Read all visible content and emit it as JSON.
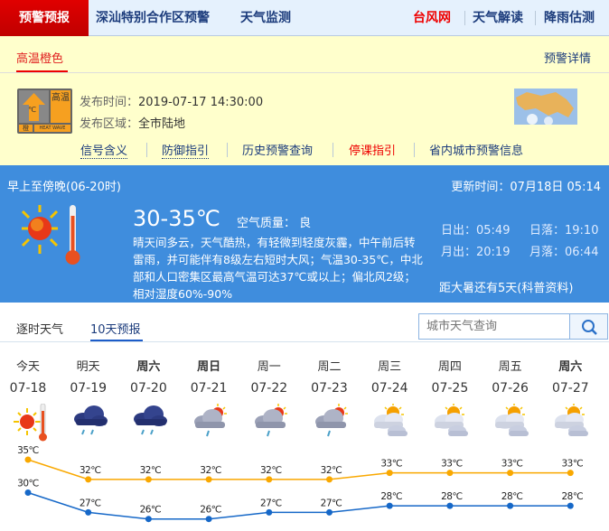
{
  "nav": {
    "active": "预警预报",
    "items": [
      "深汕特别合作区预警",
      "天气监测"
    ],
    "right": [
      "台风网",
      "天气解读",
      "降雨估测"
    ]
  },
  "warning": {
    "tab": "高温橙色",
    "details_link": "预警详情",
    "icon_label": "高温",
    "icon_level": "橙",
    "icon_en": "HEAT WAVE",
    "icon_unit": "℃",
    "time_label": "发布时间：",
    "time": "2019-07-17 14:30:00",
    "area_label": "发布区域：",
    "area": "全市陆地",
    "links": [
      "信号含义",
      "防御指引",
      "历史预警查询",
      "停课指引",
      "省内城市预警信息"
    ]
  },
  "today": {
    "period": "早上至傍晚(06-20时)",
    "update": "更新时间：07月18日 05:14",
    "temp": "30-35℃",
    "aq": "空气质量： 良",
    "desc": "晴天间多云，天气酷热，有轻微到轻度灰霾，中午前后转雷雨，并可能伴有8级左右短时大风；气温30-35℃，中北部和人口密集区最高气温可达37℃或以上；偏北风2级；相对湿度60%-90%",
    "sunrise": "日出：05:49",
    "sunset": "日落：19:10",
    "moonrise": "月出：20:19",
    "moonset": "月落：06:44",
    "solar_term": "距大暑还有5天(科普资料)"
  },
  "forecast": {
    "tabs": [
      "逐时天气",
      "10天预报"
    ],
    "active_tab": 1,
    "search_placeholder": "城市天气查询",
    "days": [
      {
        "wd": "今天",
        "date": "07-18",
        "icon": "sunny-hot",
        "hi": 35,
        "lo": 30,
        "bold": false
      },
      {
        "wd": "明天",
        "date": "07-19",
        "icon": "rain",
        "hi": 32,
        "lo": 27,
        "bold": false
      },
      {
        "wd": "周六",
        "date": "07-20",
        "icon": "rain",
        "hi": 32,
        "lo": 26,
        "bold": true
      },
      {
        "wd": "周日",
        "date": "07-21",
        "icon": "thunder-shower",
        "hi": 32,
        "lo": 26,
        "bold": true
      },
      {
        "wd": "周一",
        "date": "07-22",
        "icon": "thunder-shower",
        "hi": 32,
        "lo": 27,
        "bold": false
      },
      {
        "wd": "周二",
        "date": "07-23",
        "icon": "thunder-shower",
        "hi": 32,
        "lo": 27,
        "bold": false
      },
      {
        "wd": "周三",
        "date": "07-24",
        "icon": "partly-cloudy",
        "hi": 33,
        "lo": 28,
        "bold": false
      },
      {
        "wd": "周四",
        "date": "07-25",
        "icon": "partly-cloudy",
        "hi": 33,
        "lo": 28,
        "bold": false
      },
      {
        "wd": "周五",
        "date": "07-26",
        "icon": "partly-cloudy",
        "hi": 33,
        "lo": 28,
        "bold": false
      },
      {
        "wd": "周六",
        "date": "07-27",
        "icon": "partly-cloudy",
        "hi": 33,
        "lo": 28,
        "bold": true
      }
    ],
    "unit": "℃"
  },
  "colors": {
    "red": "#d90000",
    "navy": "#1c3c7c",
    "blue_panel": "#3f8ddd",
    "yellow": "#ffffcc",
    "hi_line": "#f9a800",
    "lo_line": "#1668c8"
  }
}
